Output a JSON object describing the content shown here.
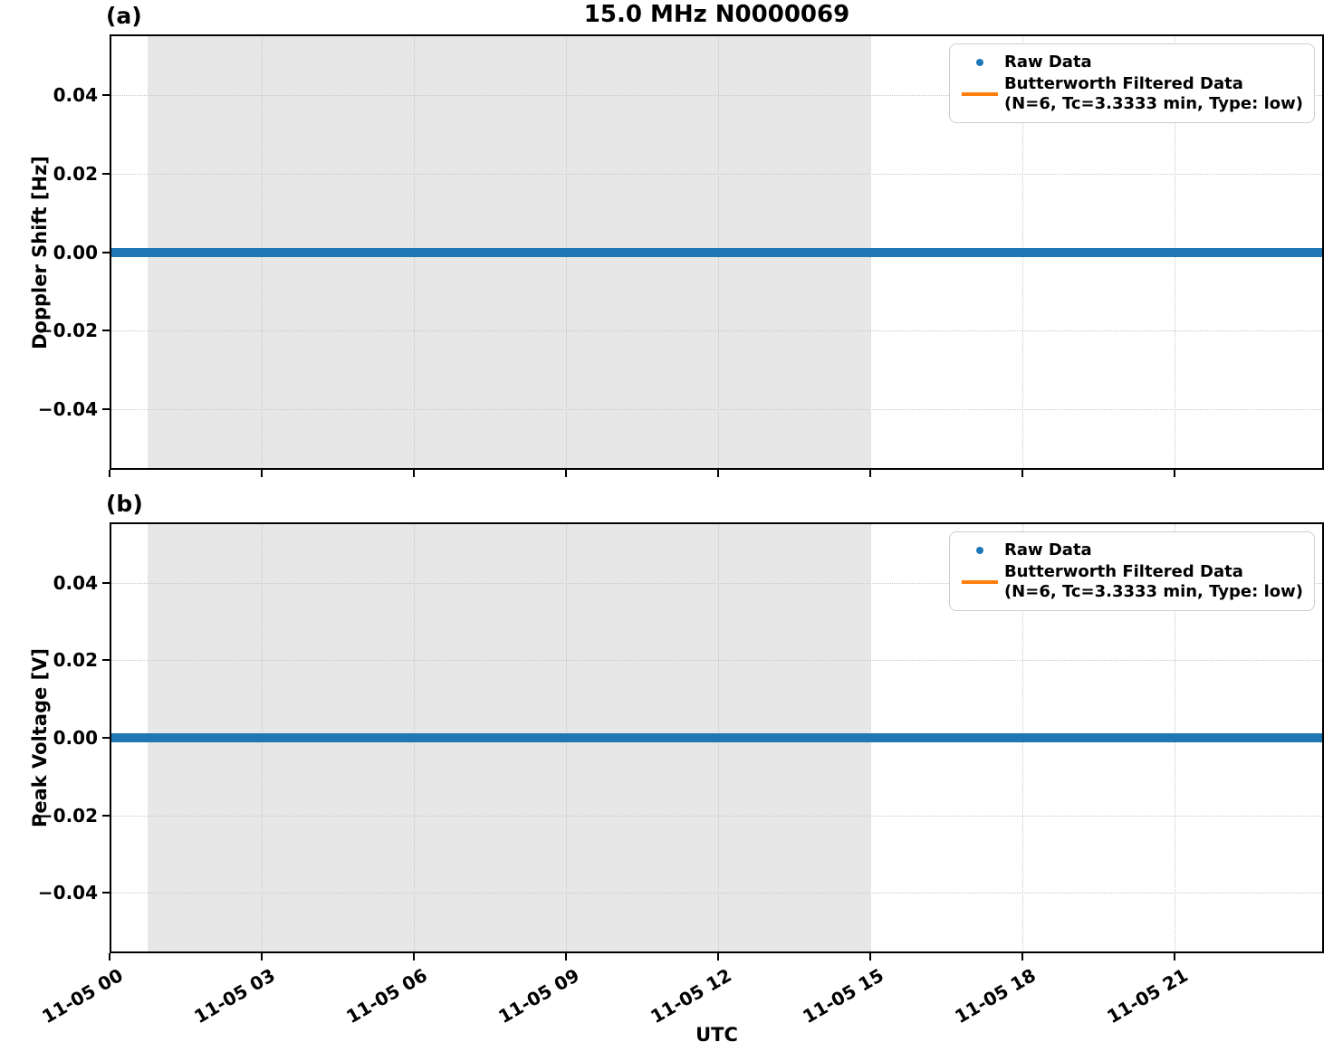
{
  "figure": {
    "title": "15.0 MHz N0000069",
    "xlabel": "UTC"
  },
  "colors": {
    "raw_data": "#1f77b4",
    "filtered_data": "#ff7f0e",
    "shaded_region": "#e7e7e7",
    "gridline": "#c9c9c9",
    "spine": "#000000",
    "legend_border": "#cccccc"
  },
  "chart_data": [
    {
      "type": "scatter",
      "panel_label": "(a)",
      "title": "15.0 MHz N0000069",
      "xlabel": "UTC",
      "ylabel": "Doppler Shift [Hz]",
      "ylim": [
        -0.0556,
        0.0556
      ],
      "x_hours_range": [
        0,
        23.95
      ],
      "x_date": "11-05",
      "grid": {
        "show": true,
        "style": "dotted",
        "color": "#c9c9c9"
      },
      "yticks": [
        {
          "value": 0.04,
          "label": "0.04"
        },
        {
          "value": 0.02,
          "label": "0.02"
        },
        {
          "value": 0.0,
          "label": "0.00"
        },
        {
          "value": -0.02,
          "label": "−0.02"
        },
        {
          "value": -0.04,
          "label": "−0.04"
        }
      ],
      "xticks": [
        {
          "hours": 0,
          "label": "11-05 00"
        },
        {
          "hours": 3,
          "label": "11-05 03"
        },
        {
          "hours": 6,
          "label": "11-05 06"
        },
        {
          "hours": 9,
          "label": "11-05 09"
        },
        {
          "hours": 12,
          "label": "11-05 12"
        },
        {
          "hours": 15,
          "label": "11-05 15"
        },
        {
          "hours": 18,
          "label": "11-05 18"
        },
        {
          "hours": 21,
          "label": "11-05 21"
        }
      ],
      "xtick_labels_visible": false,
      "shaded_span_hours": [
        0.75,
        15.0
      ],
      "shade_color": "#e7e7e7",
      "series": [
        {
          "name": "Raw Data",
          "marker": "dot",
          "color": "#1f77b4",
          "y_constant": 0.0,
          "x_span_hours": [
            0,
            23.95
          ],
          "thickness_px": 10
        },
        {
          "name": "Butterworth Filtered Data (N=6, Tc=3.3333 min, Type: low)",
          "marker": "line",
          "color": "#ff7f0e",
          "y_constant": 0.0,
          "x_span_hours": [
            0,
            23.95
          ],
          "thickness_px": 3
        }
      ],
      "legend": {
        "position": "upper right",
        "entries": [
          {
            "marker": "dot",
            "color": "#1f77b4",
            "lines": [
              "Raw Data"
            ]
          },
          {
            "marker": "line",
            "color": "#ff7f0e",
            "lines": [
              "Butterworth Filtered Data",
              "(N=6, Tc=3.3333 min, Type: low)"
            ]
          }
        ]
      }
    },
    {
      "type": "scatter",
      "panel_label": "(b)",
      "title": "",
      "xlabel": "UTC",
      "ylabel": "Peak Voltage [V]",
      "ylim": [
        -0.0556,
        0.0556
      ],
      "x_hours_range": [
        0,
        23.95
      ],
      "x_date": "11-05",
      "grid": {
        "show": true,
        "style": "dotted",
        "color": "#c9c9c9"
      },
      "yticks": [
        {
          "value": 0.04,
          "label": "0.04"
        },
        {
          "value": 0.02,
          "label": "0.02"
        },
        {
          "value": 0.0,
          "label": "0.00"
        },
        {
          "value": -0.02,
          "label": "−0.02"
        },
        {
          "value": -0.04,
          "label": "−0.04"
        }
      ],
      "xticks": [
        {
          "hours": 0,
          "label": "11-05 00"
        },
        {
          "hours": 3,
          "label": "11-05 03"
        },
        {
          "hours": 6,
          "label": "11-05 06"
        },
        {
          "hours": 9,
          "label": "11-05 09"
        },
        {
          "hours": 12,
          "label": "11-05 12"
        },
        {
          "hours": 15,
          "label": "11-05 15"
        },
        {
          "hours": 18,
          "label": "11-05 18"
        },
        {
          "hours": 21,
          "label": "11-05 21"
        }
      ],
      "xtick_labels_visible": true,
      "shaded_span_hours": [
        0.75,
        15.0
      ],
      "shade_color": "#e7e7e7",
      "series": [
        {
          "name": "Raw Data",
          "marker": "dot",
          "color": "#1f77b4",
          "y_constant": 0.0,
          "x_span_hours": [
            0,
            23.95
          ],
          "thickness_px": 10
        },
        {
          "name": "Butterworth Filtered Data (N=6, Tc=3.3333 min, Type: low)",
          "marker": "line",
          "color": "#ff7f0e",
          "y_constant": 0.0,
          "x_span_hours": [
            0,
            23.95
          ],
          "thickness_px": 3
        }
      ],
      "legend": {
        "position": "upper right",
        "entries": [
          {
            "marker": "dot",
            "color": "#1f77b4",
            "lines": [
              "Raw Data"
            ]
          },
          {
            "marker": "line",
            "color": "#ff7f0e",
            "lines": [
              "Butterworth Filtered Data",
              "(N=6, Tc=3.3333 min, Type: low)"
            ]
          }
        ]
      }
    }
  ]
}
